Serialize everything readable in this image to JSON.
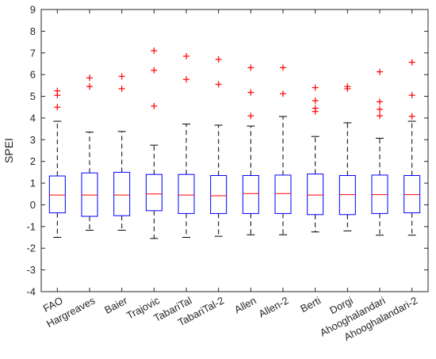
{
  "chart_data": {
    "type": "boxplot",
    "title": "",
    "xlabel": "",
    "ylabel": "SPEI",
    "ylim": [
      -4,
      9
    ],
    "yticks": [
      -4,
      -3,
      -2,
      -1,
      0,
      1,
      2,
      3,
      4,
      5,
      6,
      7,
      8,
      9
    ],
    "grid": false,
    "categories": [
      "FAO",
      "Hargreaves",
      "Baier",
      "Trajovic",
      "TabariTal",
      "TabariTal-2",
      "Allen",
      "Allen-2",
      "Berti",
      "Dorgi",
      "Ahooghalandari",
      "Ahooghalandari-2"
    ],
    "boxes": [
      {
        "whisker_low": -1.5,
        "q1": -0.37,
        "median": 0.45,
        "q3": 1.33,
        "whisker_high": 3.85,
        "outliers": [
          4.5,
          5.05,
          5.25
        ]
      },
      {
        "whisker_low": -1.17,
        "q1": -0.53,
        "median": 0.45,
        "q3": 1.47,
        "whisker_high": 3.35,
        "outliers": [
          5.45,
          5.85
        ]
      },
      {
        "whisker_low": -1.17,
        "q1": -0.5,
        "median": 0.45,
        "q3": 1.5,
        "whisker_high": 3.38,
        "outliers": [
          5.35,
          5.92
        ]
      },
      {
        "whisker_low": -1.55,
        "q1": -0.27,
        "median": 0.5,
        "q3": 1.4,
        "whisker_high": 2.75,
        "outliers": [
          4.55,
          6.2,
          7.1
        ]
      },
      {
        "whisker_low": -1.5,
        "q1": -0.4,
        "median": 0.45,
        "q3": 1.4,
        "whisker_high": 3.72,
        "outliers": [
          5.78,
          6.85
        ]
      },
      {
        "whisker_low": -1.45,
        "q1": -0.4,
        "median": 0.42,
        "q3": 1.35,
        "whisker_high": 3.67,
        "outliers": [
          5.55,
          6.7
        ]
      },
      {
        "whisker_low": -1.38,
        "q1": -0.4,
        "median": 0.52,
        "q3": 1.35,
        "whisker_high": 3.63,
        "outliers": [
          4.1,
          5.18,
          6.32
        ]
      },
      {
        "whisker_low": -1.38,
        "q1": -0.4,
        "median": 0.52,
        "q3": 1.37,
        "whisker_high": 4.07,
        "outliers": [
          5.12,
          6.32
        ]
      },
      {
        "whisker_low": -1.25,
        "q1": -0.45,
        "median": 0.45,
        "q3": 1.42,
        "whisker_high": 3.15,
        "outliers": [
          4.3,
          4.45,
          4.8,
          5.4
        ]
      },
      {
        "whisker_low": -1.2,
        "q1": -0.45,
        "median": 0.47,
        "q3": 1.35,
        "whisker_high": 3.78,
        "outliers": [
          5.35,
          5.45
        ]
      },
      {
        "whisker_low": -1.4,
        "q1": -0.4,
        "median": 0.47,
        "q3": 1.37,
        "whisker_high": 3.07,
        "outliers": [
          4.1,
          4.4,
          4.75,
          6.13
        ]
      },
      {
        "whisker_low": -1.4,
        "q1": -0.37,
        "median": 0.47,
        "q3": 1.35,
        "whisker_high": 3.85,
        "outliers": [
          4.08,
          5.05,
          6.57
        ]
      }
    ],
    "colors": {
      "box": "#0000ff",
      "median": "#ff0000",
      "outlier": "#ff0000",
      "whisker": "#000000",
      "axis": "#262626"
    }
  }
}
